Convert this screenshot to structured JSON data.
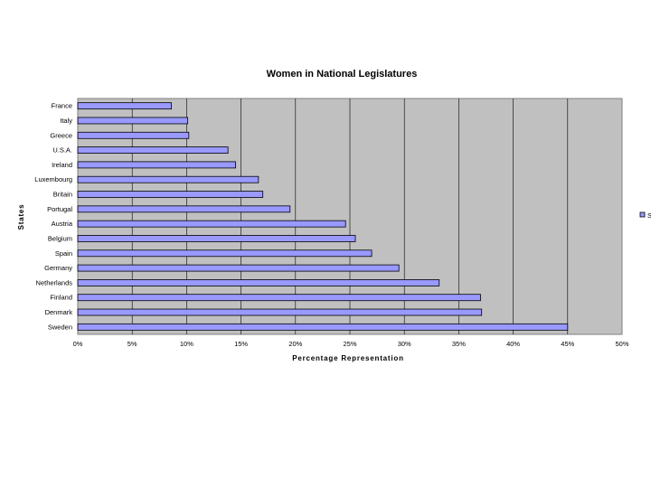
{
  "chart_data": {
    "type": "bar",
    "orientation": "horizontal",
    "title": "Women in National Legislatures",
    "xlabel": "Percentage Representation",
    "ylabel": "States",
    "categories": [
      "France",
      "Italy",
      "Greece",
      "U.S.A.",
      "Ireland",
      "Luxembourg",
      "Britain",
      "Portugal",
      "Austria",
      "Belgium",
      "Spain",
      "Germany",
      "Netherlands",
      "Finland",
      "Denmark",
      "Sweden"
    ],
    "series": [
      {
        "name": "S",
        "values": [
          0.086,
          0.101,
          0.102,
          0.138,
          0.145,
          0.166,
          0.17,
          0.195,
          0.246,
          0.255,
          0.27,
          0.295,
          0.332,
          0.37,
          0.371,
          0.45
        ]
      }
    ],
    "xlim": [
      0,
      0.5
    ],
    "xticks": [
      "0%",
      "5%",
      "10%",
      "15%",
      "20%",
      "25%",
      "30%",
      "35%",
      "40%",
      "45%",
      "50%"
    ],
    "grid": "vertical",
    "legend": "right (cropped)",
    "colors": {
      "plot_background": "#c0c0c0",
      "bar_fill": "#9999ff",
      "bar_stroke": "#000000",
      "gridline": "#000000"
    }
  }
}
